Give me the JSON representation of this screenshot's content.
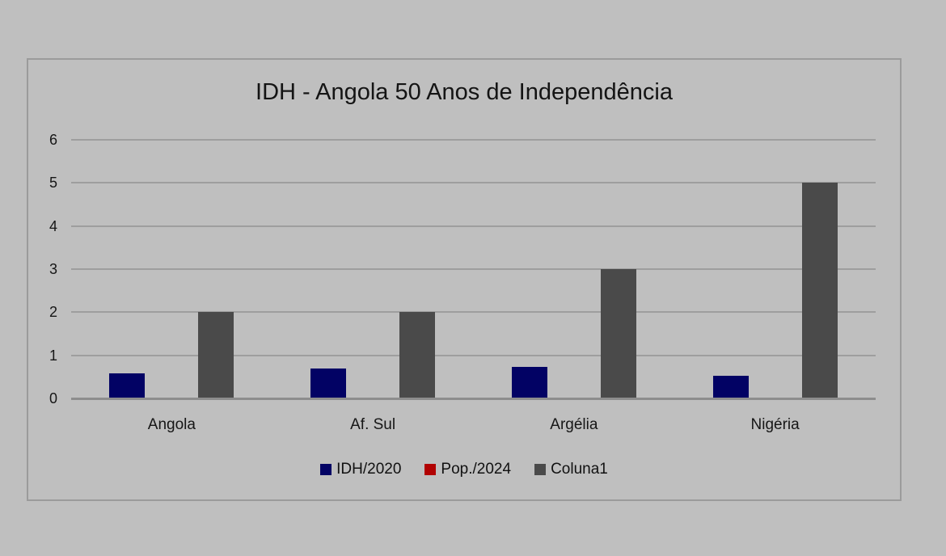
{
  "page": {
    "background_color": "#bfbfbf",
    "frame_border_color": "#9b9b9b",
    "gridline_color": "#9e9e9e",
    "axis_line_color": "#8d8d8d",
    "text_color": "#151515"
  },
  "chart_data": {
    "type": "bar",
    "title": "IDH - Angola 50 Anos de Independência",
    "categories": [
      "Angola",
      "Af. Sul",
      "Argélia",
      "Nigéria"
    ],
    "series": [
      {
        "name": "IDH/2020",
        "color": "#020264",
        "values": [
          0.58,
          0.7,
          0.73,
          0.53
        ]
      },
      {
        "name": "Pop./2024",
        "color": "#b10202",
        "values": [
          0,
          0,
          0,
          0
        ]
      },
      {
        "name": "Coluna1",
        "color": "#4a4a4a",
        "values": [
          2,
          2,
          3,
          5
        ]
      }
    ],
    "xlabel": "",
    "ylabel": "",
    "ylim": [
      0,
      6
    ],
    "yticks": [
      0,
      1,
      2,
      3,
      4,
      5,
      6
    ],
    "grid": true,
    "legend_position": "bottom"
  }
}
